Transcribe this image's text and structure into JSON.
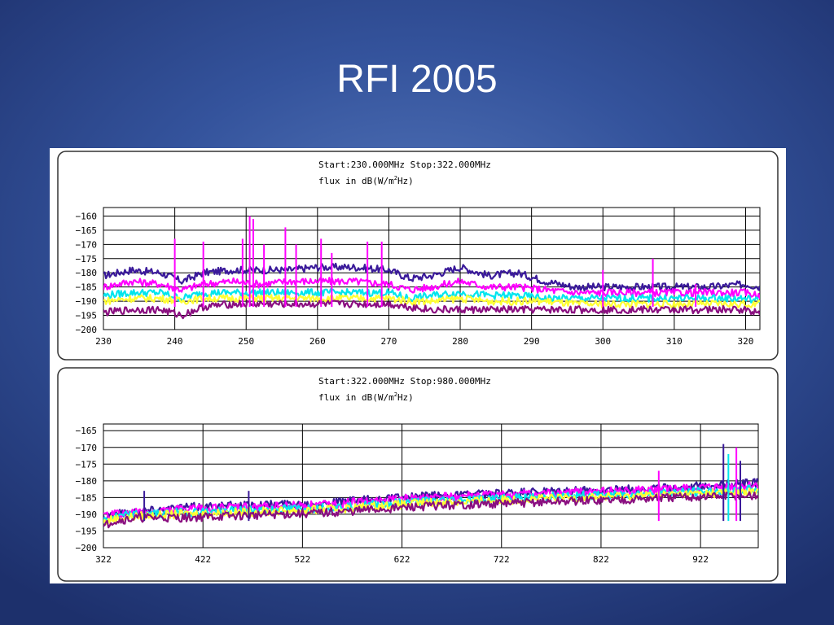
{
  "slide": {
    "title": "RFI 2005",
    "background": "#34539c"
  },
  "chart_data": [
    {
      "type": "line",
      "title_line1": "Start:230.000MHz Stop:322.000MHz",
      "title_line2_prefix": "flux in dB(W/m",
      "title_line2_sup": "2",
      "title_line2_suffix": "Hz)",
      "xlim": [
        230,
        322
      ],
      "ylim": [
        -200,
        -157
      ],
      "xticks": [
        230,
        240,
        250,
        260,
        270,
        280,
        290,
        300,
        310,
        320
      ],
      "yticks": [
        -160,
        -165,
        -170,
        -175,
        -180,
        -185,
        -190,
        -195,
        -200
      ],
      "grid": true,
      "series": [
        {
          "color": "#3a1a9a",
          "x": [
            230,
            234,
            238,
            241,
            244,
            248,
            252,
            256,
            260,
            265,
            270,
            273,
            276,
            280,
            284,
            288,
            292,
            296,
            300,
            305,
            310,
            315,
            320,
            322
          ],
          "y": [
            -181,
            -179,
            -180,
            -183,
            -180,
            -179,
            -179,
            -179,
            -178,
            -178,
            -179,
            -182,
            -181,
            -178,
            -181,
            -180,
            -183,
            -185,
            -185,
            -185,
            -185,
            -185,
            -184,
            -185
          ]
        },
        {
          "color": "#ff00ff",
          "x": [
            230,
            234,
            238,
            241,
            244,
            248,
            252,
            256,
            260,
            265,
            270,
            273,
            276,
            280,
            284,
            288,
            292,
            296,
            300,
            305,
            310,
            315,
            320,
            322
          ],
          "y": [
            -185,
            -183,
            -184,
            -186,
            -184,
            -183,
            -184,
            -183,
            -183,
            -183,
            -184,
            -186,
            -185,
            -183,
            -185,
            -185,
            -186,
            -187,
            -187,
            -187,
            -187,
            -187,
            -187,
            -188
          ]
        },
        {
          "color": "#00e5ee",
          "x": [
            230,
            234,
            238,
            241,
            244,
            248,
            252,
            256,
            260,
            265,
            270,
            273,
            276,
            280,
            284,
            288,
            292,
            296,
            300,
            305,
            310,
            315,
            320,
            322
          ],
          "y": [
            -188,
            -187,
            -187,
            -189,
            -187,
            -187,
            -187,
            -187,
            -187,
            -187,
            -187,
            -189,
            -188,
            -187,
            -188,
            -188,
            -189,
            -189,
            -189,
            -189,
            -189,
            -189,
            -189,
            -190
          ]
        },
        {
          "color": "#ffff33",
          "x": [
            230,
            234,
            238,
            241,
            244,
            248,
            252,
            256,
            260,
            265,
            270,
            273,
            276,
            280,
            284,
            288,
            292,
            296,
            300,
            305,
            310,
            315,
            320,
            322
          ],
          "y": [
            -190,
            -189,
            -189,
            -190,
            -189,
            -189,
            -189,
            -189,
            -189,
            -189,
            -189,
            -190,
            -190,
            -189,
            -190,
            -190,
            -190,
            -191,
            -191,
            -191,
            -191,
            -191,
            -191,
            -191
          ]
        },
        {
          "color": "#8a0f80",
          "x": [
            230,
            234,
            238,
            241,
            244,
            248,
            252,
            256,
            260,
            265,
            270,
            273,
            276,
            280,
            284,
            288,
            292,
            296,
            300,
            305,
            310,
            315,
            320,
            322
          ],
          "y": [
            -194,
            -193,
            -193,
            -195,
            -192,
            -191,
            -191,
            -191,
            -191,
            -191,
            -191,
            -192,
            -193,
            -193,
            -193,
            -193,
            -193,
            -193,
            -193,
            -193,
            -193,
            -193,
            -193,
            -194
          ]
        }
      ],
      "spikes": [
        {
          "x": 240,
          "y": -168,
          "color": "#ff00ff"
        },
        {
          "x": 244,
          "y": -169,
          "color": "#ff00ff"
        },
        {
          "x": 249.5,
          "y": -168,
          "color": "#ff00ff"
        },
        {
          "x": 250.5,
          "y": -160,
          "color": "#ff00ff"
        },
        {
          "x": 251,
          "y": -161,
          "color": "#ff00ff"
        },
        {
          "x": 252.5,
          "y": -170,
          "color": "#ff00ff"
        },
        {
          "x": 255.5,
          "y": -164,
          "color": "#ff00ff"
        },
        {
          "x": 257,
          "y": -170,
          "color": "#ff00ff"
        },
        {
          "x": 260.5,
          "y": -168,
          "color": "#ff00ff"
        },
        {
          "x": 262,
          "y": -173,
          "color": "#ff00ff"
        },
        {
          "x": 267,
          "y": -169,
          "color": "#ff00ff"
        },
        {
          "x": 269,
          "y": -169,
          "color": "#ff00ff"
        },
        {
          "x": 300,
          "y": -179,
          "color": "#ff00ff"
        },
        {
          "x": 307,
          "y": -175,
          "color": "#ff00ff"
        },
        {
          "x": 313,
          "y": -184,
          "color": "#ff00ff"
        }
      ]
    },
    {
      "type": "line",
      "title_line1": "Start:322.000MHz Stop:980.000MHz",
      "title_line2_prefix": "flux in dB(W/m",
      "title_line2_sup": "2",
      "title_line2_suffix": "Hz)",
      "xlim": [
        322,
        980
      ],
      "ylim": [
        -200,
        -163
      ],
      "xticks": [
        322,
        422,
        522,
        622,
        722,
        822,
        922
      ],
      "yticks": [
        -165,
        -170,
        -175,
        -180,
        -185,
        -190,
        -195,
        -200
      ],
      "grid": true,
      "series": [
        {
          "color": "#3a1a9a",
          "x": [
            322,
            330,
            360,
            400,
            450,
            500,
            550,
            600,
            650,
            700,
            750,
            800,
            850,
            900,
            950,
            980
          ],
          "y": [
            -191,
            -190,
            -189,
            -188,
            -187.5,
            -187,
            -186.5,
            -185.5,
            -184.5,
            -184,
            -183.5,
            -183,
            -182.5,
            -182,
            -181,
            -180.5
          ]
        },
        {
          "color": "#ff00ff",
          "x": [
            322,
            330,
            360,
            400,
            450,
            500,
            550,
            600,
            650,
            700,
            750,
            800,
            850,
            900,
            950,
            980
          ],
          "y": [
            -191,
            -190,
            -189.5,
            -188.5,
            -188,
            -187.5,
            -187,
            -186,
            -185,
            -184.5,
            -184,
            -183.5,
            -183,
            -182.5,
            -182,
            -181.5
          ]
        },
        {
          "color": "#00e5ee",
          "x": [
            322,
            330,
            360,
            400,
            450,
            500,
            550,
            600,
            650,
            700,
            750,
            800,
            850,
            900,
            950,
            980
          ],
          "y": [
            -192,
            -191,
            -190,
            -189.5,
            -189,
            -188.5,
            -188,
            -187,
            -186,
            -185.5,
            -185,
            -184.5,
            -184,
            -183.5,
            -183,
            -182.5
          ]
        },
        {
          "color": "#ffff33",
          "x": [
            322,
            330,
            360,
            400,
            450,
            500,
            550,
            600,
            650,
            700,
            750,
            800,
            850,
            900,
            950,
            980
          ],
          "y": [
            -192.5,
            -191.5,
            -190.5,
            -190,
            -189.5,
            -189,
            -188.5,
            -187.5,
            -186.5,
            -186,
            -185.5,
            -185,
            -184.5,
            -184,
            -183.5,
            -183.5
          ]
        },
        {
          "color": "#8a0f80",
          "x": [
            322,
            330,
            360,
            400,
            450,
            500,
            550,
            600,
            650,
            700,
            750,
            800,
            850,
            900,
            950,
            980
          ],
          "y": [
            -194,
            -192,
            -191,
            -191,
            -190.5,
            -190,
            -189.5,
            -188.5,
            -187.5,
            -187,
            -186.5,
            -186,
            -185.5,
            -185,
            -184.5,
            -184.5
          ]
        }
      ],
      "spikes": [
        {
          "x": 363,
          "y": -183,
          "color": "#3a1a9a"
        },
        {
          "x": 468,
          "y": -183,
          "color": "#3a1a9a"
        },
        {
          "x": 880,
          "y": -177,
          "color": "#ff00ff"
        },
        {
          "x": 945,
          "y": -169,
          "color": "#3a1a9a"
        },
        {
          "x": 950,
          "y": -172,
          "color": "#00e5ee"
        },
        {
          "x": 958,
          "y": -170,
          "color": "#ff00ff"
        },
        {
          "x": 962,
          "y": -174,
          "color": "#3a1a9a"
        }
      ]
    }
  ]
}
